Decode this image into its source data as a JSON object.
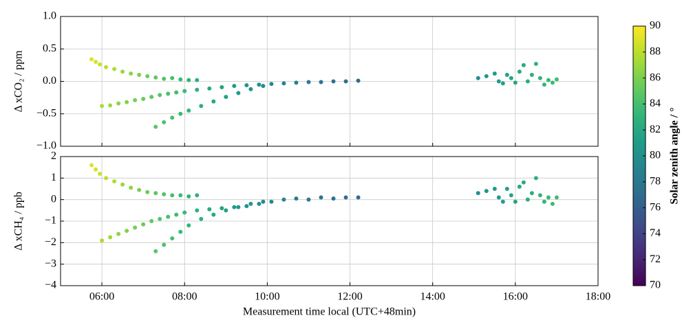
{
  "chart_data": {
    "type": "scatter",
    "xlabel": "Measurement time local (UTC+48min)",
    "xlim": [
      5,
      18
    ],
    "xticks": [
      {
        "value": 6,
        "label": "06:00"
      },
      {
        "value": 8,
        "label": "08:00"
      },
      {
        "value": 10,
        "label": "10:00"
      },
      {
        "value": 12,
        "label": "12:00"
      },
      {
        "value": 14,
        "label": "14:00"
      },
      {
        "value": 16,
        "label": "16:00"
      },
      {
        "value": 18,
        "label": "18:00"
      }
    ],
    "grid": true,
    "colormap": "viridis",
    "colorbar": {
      "label": "Solar zenith angle / °",
      "lim": [
        70,
        90
      ],
      "ticks": [
        70,
        72,
        74,
        76,
        78,
        80,
        82,
        84,
        86,
        88,
        90
      ]
    },
    "x": [
      5.75,
      5.85,
      5.95,
      6.1,
      6.3,
      6.5,
      6.7,
      6.9,
      7.1,
      7.3,
      7.5,
      7.7,
      7.9,
      8.1,
      8.3,
      6.0,
      6.2,
      6.4,
      6.6,
      6.8,
      7.0,
      7.2,
      7.4,
      7.6,
      7.8,
      8.0,
      8.3,
      8.6,
      8.9,
      9.2,
      9.5,
      9.8,
      10.1,
      10.4,
      10.7,
      11.0,
      11.3,
      11.6,
      11.9,
      12.2,
      7.3,
      7.5,
      7.7,
      7.9,
      8.1,
      8.4,
      8.7,
      9.0,
      9.3,
      9.6,
      9.9,
      15.1,
      15.3,
      15.5,
      15.6,
      15.7,
      15.8,
      15.9,
      16.0,
      16.1,
      16.2,
      16.3,
      16.4,
      16.5,
      16.6,
      16.7,
      16.8,
      16.9,
      17.0
    ],
    "c": [
      89,
      88.8,
      88.5,
      88,
      87.5,
      87,
      86.5,
      86,
      85.5,
      85,
      84.5,
      84,
      83.5,
      83,
      82.6,
      87.5,
      87,
      86.6,
      86.2,
      85.8,
      85.4,
      85,
      84.6,
      84.2,
      83.8,
      83.4,
      82.8,
      82.2,
      81.6,
      81,
      80.5,
      80,
      79.5,
      79,
      78.6,
      78.2,
      77.8,
      77.5,
      77.2,
      77,
      84.8,
      84.4,
      84,
      83.6,
      83.2,
      82.6,
      82,
      81.4,
      80.8,
      80.3,
      79.8,
      80,
      80.4,
      80.8,
      81,
      81.2,
      81.4,
      81.6,
      81.8,
      82,
      82.2,
      82.4,
      82.6,
      82.8,
      83,
      83.2,
      83.4,
      83.6,
      83.8
    ],
    "panels": [
      {
        "ylabel": "Δ xCO₂ / ppm",
        "ylim": [
          -1,
          1
        ],
        "yticks": [
          {
            "value": -1,
            "label": "−1.0"
          },
          {
            "value": -0.5,
            "label": "−0.5"
          },
          {
            "value": 0,
            "label": "0.0"
          },
          {
            "value": 0.5,
            "label": "0.5"
          },
          {
            "value": 1,
            "label": "1.0"
          }
        ],
        "y": [
          0.34,
          0.3,
          0.26,
          0.22,
          0.19,
          0.15,
          0.12,
          0.1,
          0.08,
          0.06,
          0.04,
          0.05,
          0.03,
          0.02,
          0.02,
          -0.38,
          -0.37,
          -0.34,
          -0.32,
          -0.29,
          -0.27,
          -0.24,
          -0.21,
          -0.19,
          -0.17,
          -0.15,
          -0.13,
          -0.11,
          -0.09,
          -0.07,
          -0.06,
          -0.05,
          -0.04,
          -0.03,
          -0.02,
          -0.01,
          -0.01,
          0.0,
          0.0,
          0.01,
          -0.7,
          -0.63,
          -0.56,
          -0.5,
          -0.45,
          -0.38,
          -0.31,
          -0.24,
          -0.18,
          -0.12,
          -0.07,
          0.05,
          0.08,
          0.12,
          0.0,
          -0.03,
          0.1,
          0.05,
          -0.02,
          0.15,
          0.25,
          0.0,
          0.1,
          0.27,
          0.05,
          -0.05,
          0.02,
          -0.02,
          0.03
        ]
      },
      {
        "ylabel": "Δ xCH₄ / ppb",
        "ylim": [
          -4,
          2
        ],
        "yticks": [
          {
            "value": -4,
            "label": "−4"
          },
          {
            "value": -3,
            "label": "−3"
          },
          {
            "value": -2,
            "label": "−2"
          },
          {
            "value": -1,
            "label": "−1"
          },
          0,
          1,
          2
        ],
        "y": [
          1.6,
          1.4,
          1.2,
          1.0,
          0.85,
          0.7,
          0.55,
          0.45,
          0.35,
          0.3,
          0.25,
          0.2,
          0.2,
          0.15,
          0.2,
          -1.9,
          -1.75,
          -1.6,
          -1.45,
          -1.3,
          -1.15,
          -1.0,
          -0.9,
          -0.8,
          -0.7,
          -0.6,
          -0.5,
          -0.45,
          -0.4,
          -0.35,
          -0.3,
          -0.2,
          -0.1,
          0.0,
          0.05,
          0.0,
          0.1,
          0.05,
          0.1,
          0.1,
          -2.4,
          -2.1,
          -1.8,
          -1.5,
          -1.2,
          -0.9,
          -0.7,
          -0.5,
          -0.35,
          -0.2,
          -0.1,
          0.3,
          0.4,
          0.5,
          0.1,
          -0.1,
          0.5,
          0.2,
          -0.1,
          0.6,
          0.8,
          0.0,
          0.3,
          1.0,
          0.2,
          -0.1,
          0.1,
          -0.2,
          0.1
        ]
      }
    ]
  }
}
